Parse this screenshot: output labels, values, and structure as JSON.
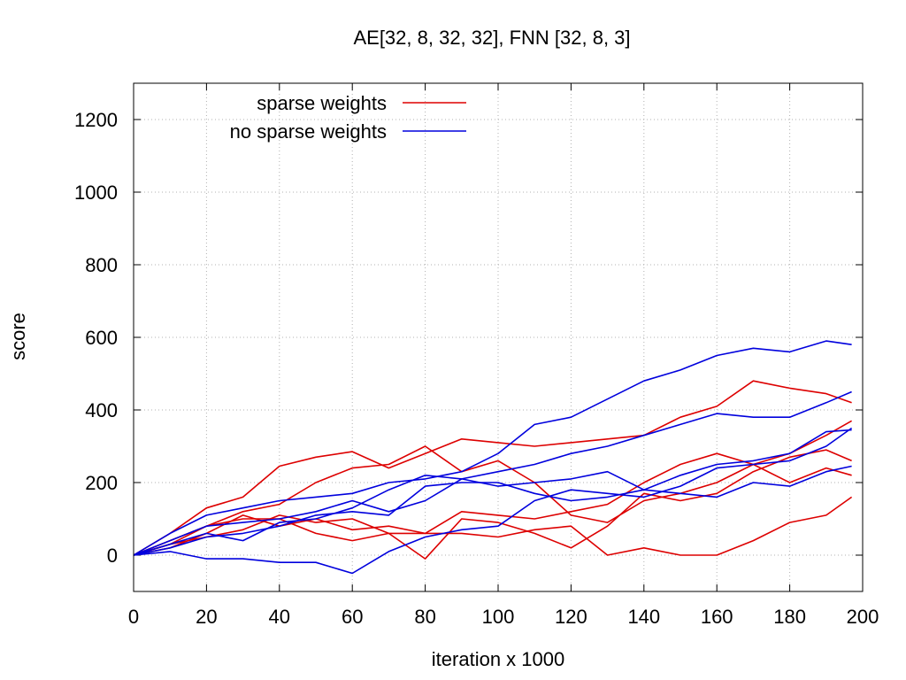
{
  "chart_data": {
    "type": "line",
    "title": "AE[32, 8, 32, 32], FNN [32, 8, 3]",
    "xlabel": "iteration x 1000",
    "ylabel": "score",
    "xlim": [
      0,
      200
    ],
    "ylim": [
      -100,
      1300
    ],
    "x_ticks": [
      0,
      20,
      40,
      60,
      80,
      100,
      120,
      140,
      160,
      180,
      200
    ],
    "y_ticks": [
      0,
      200,
      400,
      600,
      800,
      1000,
      1200
    ],
    "grid": true,
    "legend_position": "top-left",
    "legend": [
      {
        "label": "sparse weights",
        "color": "#dd0000"
      },
      {
        "label": "no sparse weights",
        "color": "#0000dd"
      }
    ],
    "series": [
      {
        "group": "sparse weights",
        "color": "#dd0000",
        "x": [
          0,
          10,
          20,
          30,
          40,
          50,
          60,
          70,
          80,
          90,
          100,
          110,
          120,
          130,
          140,
          150,
          160,
          170,
          180,
          190,
          197
        ],
        "y": [
          0,
          60,
          130,
          160,
          245,
          270,
          285,
          240,
          280,
          320,
          310,
          300,
          310,
          320,
          330,
          380,
          410,
          480,
          460,
          445,
          420
        ]
      },
      {
        "group": "sparse weights",
        "color": "#dd0000",
        "x": [
          0,
          10,
          20,
          30,
          40,
          50,
          60,
          70,
          80,
          90,
          100,
          110,
          120,
          130,
          140,
          150,
          160,
          170,
          180,
          190,
          197
        ],
        "y": [
          0,
          40,
          80,
          120,
          140,
          200,
          240,
          250,
          300,
          230,
          260,
          200,
          110,
          90,
          150,
          170,
          200,
          250,
          280,
          330,
          370
        ]
      },
      {
        "group": "sparse weights",
        "color": "#dd0000",
        "x": [
          0,
          10,
          20,
          30,
          40,
          50,
          60,
          70,
          80,
          90,
          100,
          110,
          120,
          130,
          140,
          150,
          160,
          170,
          180,
          190,
          197
        ],
        "y": [
          0,
          20,
          60,
          110,
          80,
          100,
          70,
          80,
          60,
          120,
          110,
          100,
          120,
          140,
          200,
          250,
          280,
          250,
          200,
          240,
          220
        ]
      },
      {
        "group": "sparse weights",
        "color": "#dd0000",
        "x": [
          0,
          10,
          20,
          30,
          40,
          50,
          60,
          70,
          80,
          90,
          100,
          110,
          120,
          130,
          140,
          150,
          160,
          170,
          180,
          190,
          197
        ],
        "y": [
          0,
          30,
          50,
          70,
          110,
          90,
          100,
          60,
          -10,
          100,
          90,
          60,
          20,
          80,
          170,
          150,
          170,
          230,
          270,
          290,
          260
        ]
      },
      {
        "group": "sparse weights",
        "color": "#dd0000",
        "x": [
          0,
          10,
          20,
          30,
          40,
          50,
          60,
          70,
          80,
          90,
          100,
          110,
          120,
          130,
          140,
          150,
          160,
          170,
          180,
          190,
          197
        ],
        "y": [
          0,
          30,
          80,
          100,
          100,
          60,
          40,
          60,
          60,
          60,
          50,
          70,
          80,
          0,
          20,
          0,
          0,
          40,
          90,
          110,
          160
        ]
      },
      {
        "group": "no sparse weights",
        "color": "#0000dd",
        "x": [
          0,
          10,
          20,
          30,
          40,
          50,
          60,
          70,
          80,
          90,
          100,
          110,
          120,
          130,
          140,
          150,
          160,
          170,
          180,
          190,
          197
        ],
        "y": [
          0,
          60,
          110,
          130,
          150,
          160,
          170,
          200,
          210,
          230,
          280,
          360,
          380,
          430,
          480,
          510,
          550,
          570,
          560,
          590,
          580
        ]
      },
      {
        "group": "no sparse weights",
        "color": "#0000dd",
        "x": [
          0,
          10,
          20,
          30,
          40,
          50,
          60,
          70,
          80,
          90,
          100,
          110,
          120,
          130,
          140,
          150,
          160,
          170,
          180,
          190,
          197
        ],
        "y": [
          0,
          40,
          80,
          90,
          100,
          120,
          150,
          120,
          150,
          210,
          230,
          250,
          280,
          300,
          330,
          360,
          390,
          380,
          380,
          420,
          450
        ]
      },
      {
        "group": "no sparse weights",
        "color": "#0000dd",
        "x": [
          0,
          10,
          20,
          30,
          40,
          50,
          60,
          70,
          80,
          90,
          100,
          110,
          120,
          130,
          140,
          150,
          160,
          170,
          180,
          190,
          197
        ],
        "y": [
          0,
          10,
          -10,
          -10,
          -20,
          -20,
          -50,
          10,
          50,
          70,
          80,
          150,
          180,
          170,
          160,
          190,
          240,
          250,
          260,
          300,
          350
        ]
      },
      {
        "group": "no sparse weights",
        "color": "#0000dd",
        "x": [
          0,
          10,
          20,
          30,
          40,
          50,
          60,
          70,
          80,
          90,
          100,
          110,
          120,
          130,
          140,
          150,
          160,
          170,
          180,
          190,
          197
        ],
        "y": [
          0,
          20,
          50,
          60,
          80,
          110,
          120,
          110,
          190,
          200,
          200,
          170,
          150,
          160,
          180,
          220,
          250,
          260,
          280,
          340,
          345
        ]
      },
      {
        "group": "no sparse weights",
        "color": "#0000dd",
        "x": [
          0,
          10,
          20,
          30,
          40,
          50,
          60,
          70,
          80,
          90,
          100,
          110,
          120,
          130,
          140,
          150,
          160,
          170,
          180,
          190,
          197
        ],
        "y": [
          0,
          30,
          60,
          40,
          90,
          100,
          130,
          180,
          220,
          210,
          190,
          200,
          210,
          230,
          180,
          170,
          160,
          200,
          190,
          230,
          245
        ]
      }
    ]
  }
}
